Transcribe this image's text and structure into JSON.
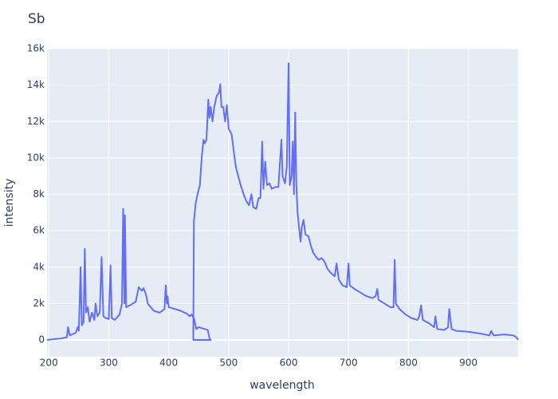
{
  "chart_data": {
    "type": "line",
    "title": "Sb",
    "x_label": "wavelength",
    "y_label": "intensity",
    "x": [
      197,
      210,
      220,
      230,
      232,
      235,
      245,
      248,
      250,
      253,
      255,
      258,
      260,
      262,
      265,
      268,
      272,
      276,
      278,
      281,
      285,
      288,
      291,
      295,
      300,
      303,
      305,
      310,
      318,
      322,
      324,
      326,
      327,
      329,
      335,
      345,
      350,
      355,
      358,
      362,
      365,
      375,
      385,
      393,
      395,
      397,
      398,
      400,
      410,
      420,
      430,
      435,
      438,
      442,
      446,
      450,
      460,
      465,
      468,
      470,
      441,
      442,
      445,
      448,
      452,
      455,
      458,
      460,
      463,
      466,
      468,
      470,
      473,
      476,
      480,
      484,
      486,
      488,
      491,
      494,
      497,
      500,
      505,
      508,
      512,
      516,
      520,
      526,
      530,
      534,
      538,
      541,
      546,
      550,
      553,
      556,
      558,
      561,
      564,
      568,
      572,
      578,
      583,
      588,
      590,
      594,
      597,
      600,
      602,
      605,
      607,
      609,
      611,
      613,
      615,
      618,
      620,
      622,
      625,
      628,
      633,
      637,
      641,
      645,
      650,
      655,
      660,
      665,
      670,
      677,
      680,
      684,
      690,
      697,
      700,
      702,
      710,
      720,
      730,
      740,
      745,
      748,
      750,
      760,
      770,
      775,
      777,
      779,
      785,
      795,
      805,
      815,
      818,
      821,
      824,
      835,
      843,
      845,
      848,
      860,
      866,
      868,
      872,
      880,
      900,
      920,
      935,
      938,
      942,
      960,
      975,
      980,
      983
    ],
    "series": [
      {
        "name": "Sb",
        "color": "#636efa",
        "values": [
          0,
          50,
          80,
          150,
          700,
          250,
          400,
          700,
          500,
          4000,
          800,
          1000,
          5000,
          1500,
          1800,
          1000,
          1500,
          1100,
          2000,
          1300,
          1500,
          4550,
          1300,
          1200,
          1150,
          4100,
          1200,
          1100,
          1400,
          2000,
          7200,
          2000,
          6850,
          1800,
          1900,
          2100,
          2900,
          2700,
          2850,
          2500,
          2000,
          1600,
          1500,
          1700,
          3000,
          2000,
          2400,
          1800,
          1700,
          1600,
          1450,
          1300,
          1400,
          1200,
          600,
          700,
          600,
          550,
          100,
          0,
          0,
          6500,
          7500,
          8000,
          8500,
          10000,
          11000,
          10800,
          11000,
          13200,
          12200,
          12800,
          12000,
          12800,
          13400,
          13600,
          14050,
          12800,
          12800,
          12000,
          12900,
          11600,
          11300,
          10500,
          9500,
          9000,
          8500,
          7900,
          7600,
          7400,
          8000,
          7300,
          7200,
          7800,
          7800,
          10900,
          8300,
          9800,
          8500,
          8600,
          8300,
          8400,
          8400,
          11000,
          9000,
          8600,
          9500,
          15200,
          8500,
          9000,
          10900,
          8000,
          12500,
          8500,
          7000,
          6000,
          5400,
          6200,
          6600,
          5800,
          5700,
          5200,
          4800,
          4600,
          4400,
          4500,
          4300,
          3900,
          3700,
          3500,
          4200,
          3300,
          3000,
          2900,
          4200,
          3000,
          2800,
          2600,
          2400,
          2300,
          2400,
          2800,
          2200,
          2000,
          1800,
          1800,
          4400,
          2000,
          1700,
          1400,
          1200,
          1100,
          1300,
          1900,
          1100,
          900,
          700,
          1300,
          600,
          550,
          700,
          1700,
          600,
          500,
          450,
          350,
          250,
          500,
          250,
          300,
          250,
          150,
          0
        ]
      }
    ],
    "xlim": [
      197,
      983
    ],
    "ylim": [
      -920,
      16000
    ],
    "xticks": [
      200,
      300,
      400,
      500,
      600,
      700,
      800,
      900
    ],
    "yticks": [
      0,
      {
        "value": 2000,
        "label": "2k"
      },
      {
        "value": 4000,
        "label": "4k"
      },
      {
        "value": 6000,
        "label": "6k"
      },
      {
        "value": 8000,
        "label": "8k"
      },
      {
        "value": 10000,
        "label": "10k"
      },
      {
        "value": 12000,
        "label": "12k"
      },
      {
        "value": 14000,
        "label": "14k"
      },
      {
        "value": 16000,
        "label": "16k"
      }
    ],
    "grid": true
  }
}
